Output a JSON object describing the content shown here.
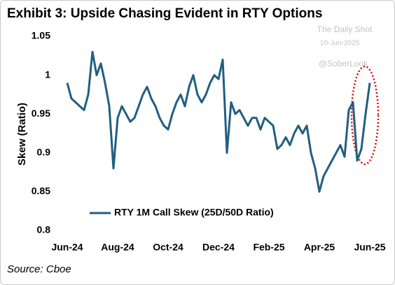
{
  "chart_data": {
    "type": "line",
    "title": "Exhibit 3: Upside Chasing Evident in RTY Options",
    "watermark": [
      "The Daily Shot",
      "10-Jun-2025",
      "@SoberLook"
    ],
    "y_label": "Skew (Ratio)",
    "source": "Source: Cboe",
    "categories": [
      "Jun-24",
      null,
      null,
      null,
      null,
      null,
      null,
      null,
      null,
      null,
      null,
      null,
      "Aug-24",
      null,
      null,
      null,
      null,
      null,
      null,
      null,
      null,
      null,
      null,
      null,
      "Oct-24",
      null,
      null,
      null,
      null,
      null,
      null,
      null,
      null,
      null,
      null,
      null,
      "Dec-24",
      null,
      null,
      null,
      null,
      null,
      null,
      null,
      null,
      null,
      null,
      null,
      "Feb-25",
      null,
      null,
      null,
      null,
      null,
      null,
      null,
      null,
      null,
      null,
      null,
      "Apr-25",
      null,
      null,
      null,
      null,
      null,
      null,
      null,
      null,
      null,
      null,
      null,
      "Jun-25"
    ],
    "series": [
      {
        "name": "RTY 1M Call Skew (25D/50D Ratio)",
        "color": "#215f7f",
        "values": [
          0.99,
          0.97,
          0.965,
          0.96,
          0.955,
          0.975,
          1.03,
          1.0,
          1.015,
          0.99,
          0.96,
          0.88,
          0.945,
          0.96,
          0.95,
          0.94,
          0.945,
          0.96,
          0.975,
          0.985,
          0.97,
          0.96,
          0.945,
          0.935,
          0.93,
          0.95,
          0.965,
          0.975,
          0.96,
          0.985,
          1.0,
          0.975,
          0.965,
          0.975,
          0.99,
          1.0,
          0.995,
          1.02,
          0.9,
          0.965,
          0.95,
          0.955,
          0.945,
          0.935,
          0.945,
          0.945,
          0.93,
          0.945,
          0.94,
          0.935,
          0.905,
          0.91,
          0.92,
          0.91,
          0.925,
          0.935,
          0.925,
          0.935,
          0.9,
          0.88,
          0.85,
          0.87,
          0.88,
          0.89,
          0.9,
          0.91,
          0.895,
          0.955,
          0.965,
          0.89,
          0.905,
          0.95,
          0.99
        ]
      }
    ],
    "ylim": [
      0.8,
      1.05
    ],
    "yticks": [
      0.8,
      0.85,
      0.9,
      0.95,
      1,
      1.05
    ],
    "legend": "lower left"
  }
}
